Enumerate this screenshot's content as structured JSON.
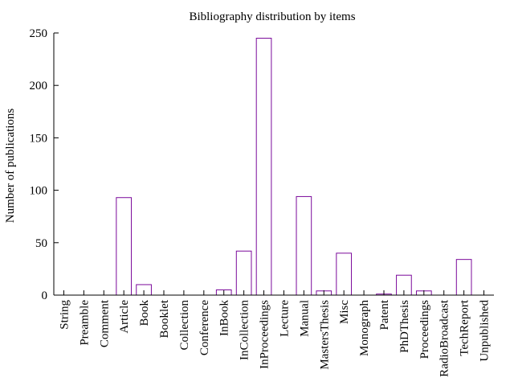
{
  "chart_data": {
    "type": "bar",
    "title": "Bibliography distribution by items",
    "xlabel": "",
    "ylabel": "Number of publications",
    "ylim": [
      0,
      250
    ],
    "yticks": [
      0,
      50,
      100,
      150,
      200,
      250
    ],
    "grid": false,
    "legend": "none",
    "bar_color": "#7b0a9b",
    "categories": [
      "String",
      "Preamble",
      "Comment",
      "Article",
      "Book",
      "Booklet",
      "Collection",
      "Conference",
      "InBook",
      "InCollection",
      "InProceedings",
      "Lecture",
      "Manual",
      "MastersThesis",
      "Misc",
      "Monograph",
      "Patent",
      "PhDThesis",
      "Proceedings",
      "RadioBroadcast",
      "TechReport",
      "Unpublished"
    ],
    "values": [
      0,
      0,
      0,
      93,
      10,
      0,
      0,
      0,
      5,
      42,
      245,
      0,
      94,
      4,
      40,
      0,
      1,
      19,
      4,
      0,
      34,
      0
    ]
  }
}
